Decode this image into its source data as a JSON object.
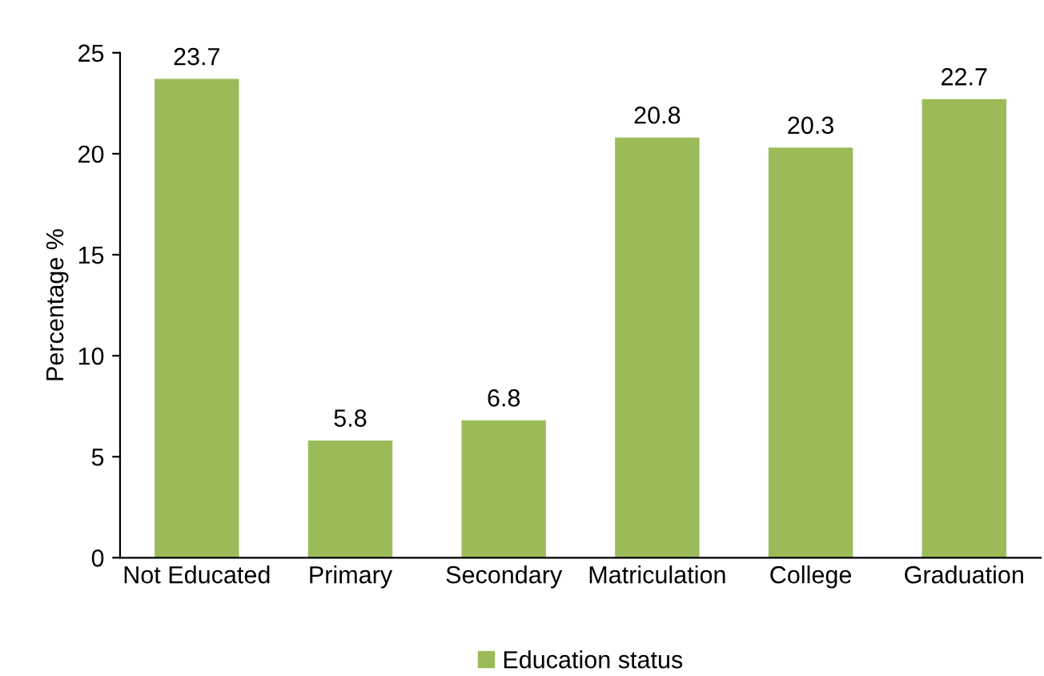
{
  "chart_data": {
    "type": "bar",
    "ylabel": "Percentage %",
    "categories": [
      "Not Educated",
      "Primary",
      "Secondary",
      "Matriculation",
      "College",
      "Graduation"
    ],
    "series": [
      {
        "name": "Education status",
        "color": "#9bbb59",
        "values": [
          23.7,
          5.8,
          6.8,
          20.8,
          20.3,
          22.7
        ]
      }
    ],
    "ylim": [
      0,
      25
    ],
    "yticks": [
      0,
      5,
      10,
      15,
      20,
      25
    ],
    "data_labels": true,
    "grid": false,
    "legend": "bottom"
  }
}
